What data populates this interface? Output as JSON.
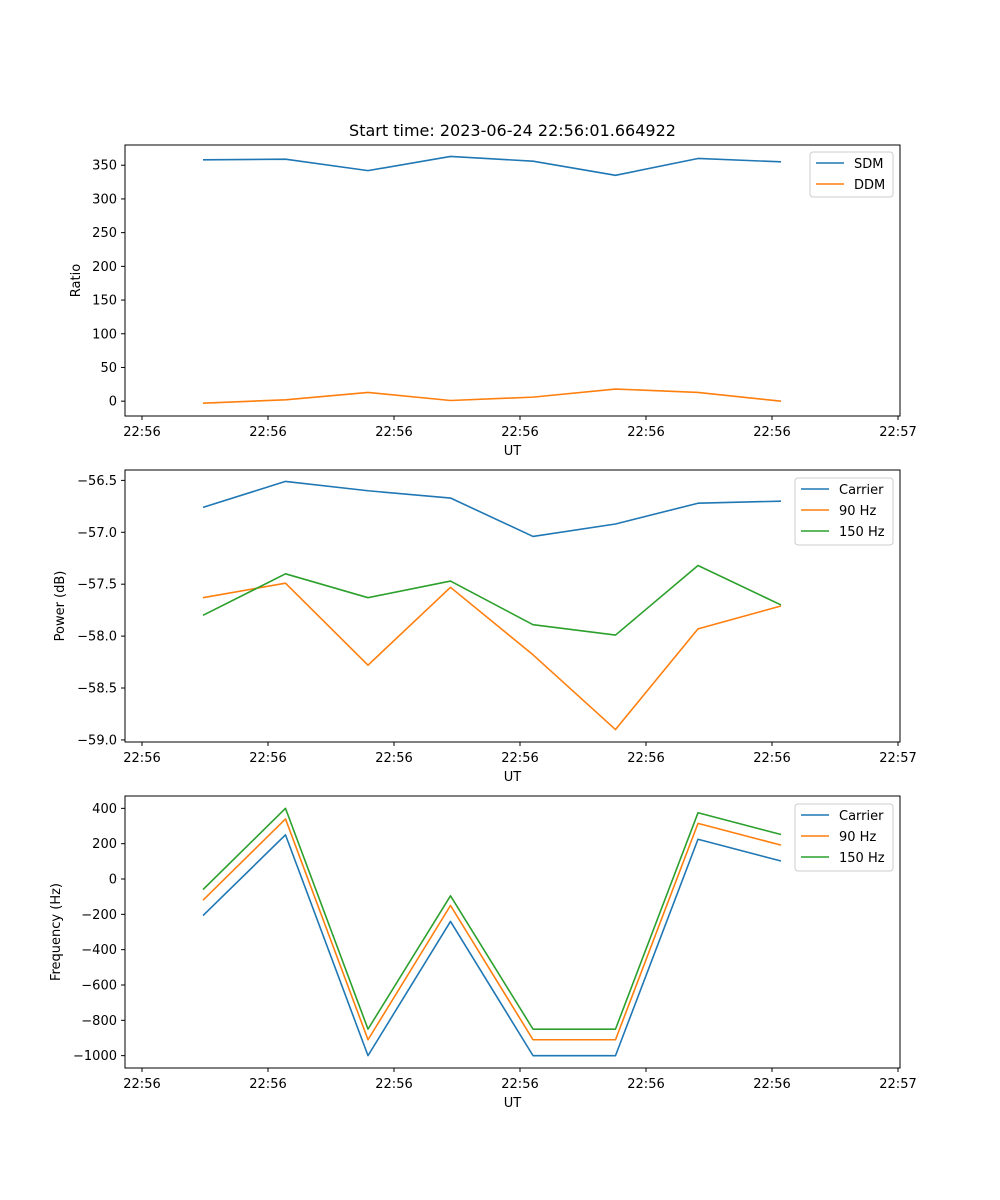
{
  "chart_data": [
    {
      "type": "line",
      "title": "Start time: 2023-06-24 22:56:01.664922",
      "xlabel": "UT",
      "ylabel": "Ratio",
      "x_tick_labels": [
        "22:56",
        "22:56",
        "22:56",
        "22:56",
        "22:56",
        "22:56",
        "22:56",
        "22:57"
      ],
      "y_ticks": [
        0,
        50,
        100,
        150,
        200,
        250,
        300,
        350
      ],
      "y_tick_labels": [
        "0",
        "50",
        "100",
        "150",
        "200",
        "250",
        "300",
        "350"
      ],
      "ylim": [
        -22,
        380
      ],
      "legend_position": "upper-right",
      "series": [
        {
          "name": "SDM",
          "color": "#1f77b4",
          "values": [
            358,
            359,
            342,
            363,
            356,
            335,
            360,
            355
          ]
        },
        {
          "name": "DDM",
          "color": "#ff7f0e",
          "values": [
            -3,
            2,
            13,
            1,
            6,
            18,
            13,
            0
          ]
        }
      ]
    },
    {
      "type": "line",
      "title": "",
      "xlabel": "UT",
      "ylabel": "Power (dB)",
      "x_tick_labels": [
        "22:56",
        "22:56",
        "22:56",
        "22:56",
        "22:56",
        "22:56",
        "22:56",
        "22:57"
      ],
      "y_ticks": [
        -59.0,
        -58.5,
        -58.0,
        -57.5,
        -57.0,
        -56.5
      ],
      "y_tick_labels": [
        "−59.0",
        "−58.5",
        "−58.0",
        "−57.5",
        "−57.0",
        "−56.5"
      ],
      "ylim": [
        -59.02,
        -56.4
      ],
      "legend_position": "upper-right",
      "series": [
        {
          "name": "Carrier",
          "color": "#1f77b4",
          "values": [
            -56.76,
            -56.51,
            -56.6,
            -56.67,
            -57.04,
            -56.92,
            -56.72,
            -56.7
          ]
        },
        {
          "name": "90 Hz",
          "color": "#ff7f0e",
          "values": [
            -57.63,
            -57.49,
            -58.28,
            -57.53,
            -58.18,
            -58.9,
            -57.93,
            -57.71
          ]
        },
        {
          "name": "150 Hz",
          "color": "#2ca02c",
          "values": [
            -57.8,
            -57.4,
            -57.63,
            -57.47,
            -57.89,
            -57.99,
            -57.32,
            -57.7
          ]
        }
      ]
    },
    {
      "type": "line",
      "title": "",
      "xlabel": "UT",
      "ylabel": "Frequency (Hz)",
      "x_tick_labels": [
        "22:56",
        "22:56",
        "22:56",
        "22:56",
        "22:56",
        "22:56",
        "22:56",
        "22:57"
      ],
      "y_ticks": [
        -1000,
        -800,
        -600,
        -400,
        -200,
        0,
        200,
        400
      ],
      "y_tick_labels": [
        "−1000",
        "−800",
        "−600",
        "−400",
        "−200",
        "0",
        "200",
        "400"
      ],
      "ylim": [
        -1070,
        470
      ],
      "legend_position": "upper-right",
      "series": [
        {
          "name": "Carrier",
          "color": "#1f77b4",
          "values": [
            -207,
            250,
            -1000,
            -240,
            -1000,
            -1000,
            225,
            102
          ]
        },
        {
          "name": "90 Hz",
          "color": "#ff7f0e",
          "values": [
            -120,
            340,
            -910,
            -150,
            -910,
            -910,
            315,
            192
          ]
        },
        {
          "name": "150 Hz",
          "color": "#2ca02c",
          "values": [
            -60,
            400,
            -850,
            -95,
            -850,
            -850,
            375,
            252
          ]
        }
      ]
    }
  ]
}
